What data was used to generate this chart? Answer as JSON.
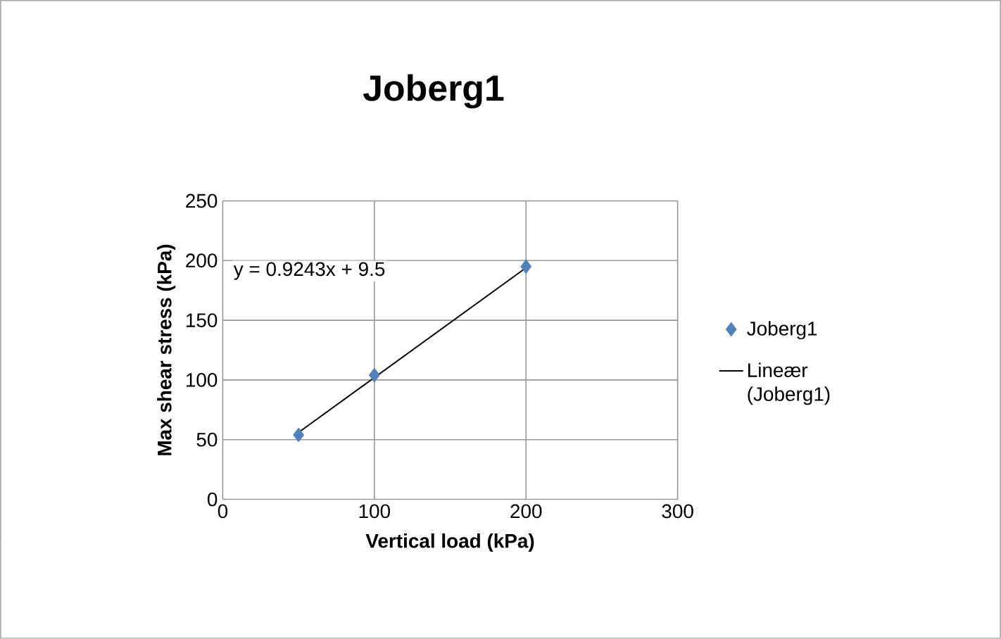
{
  "chart_data": {
    "type": "scatter",
    "title": "Joberg1",
    "xlabel": "Vertical load (kPa)",
    "ylabel": "Max shear stress (kPa)",
    "xlim": [
      0,
      300
    ],
    "xticks": [
      0,
      100,
      200,
      300
    ],
    "ylim": [
      0,
      250
    ],
    "yticks": [
      0,
      50,
      100,
      150,
      200,
      250
    ],
    "grid": true,
    "legend": "right",
    "annotations": [
      "y = 0.9243x + 9.5"
    ],
    "series": [
      {
        "name": "Joberg1",
        "marker": "diamond",
        "color": "#4f81bd",
        "x": [
          50,
          100,
          200
        ],
        "values": [
          54,
          104,
          195
        ]
      },
      {
        "name": "Lineær (Joberg1)",
        "type": "line",
        "color": "#000000",
        "x": [
          50,
          200
        ],
        "values": [
          56,
          194
        ],
        "marker": "none"
      }
    ]
  }
}
